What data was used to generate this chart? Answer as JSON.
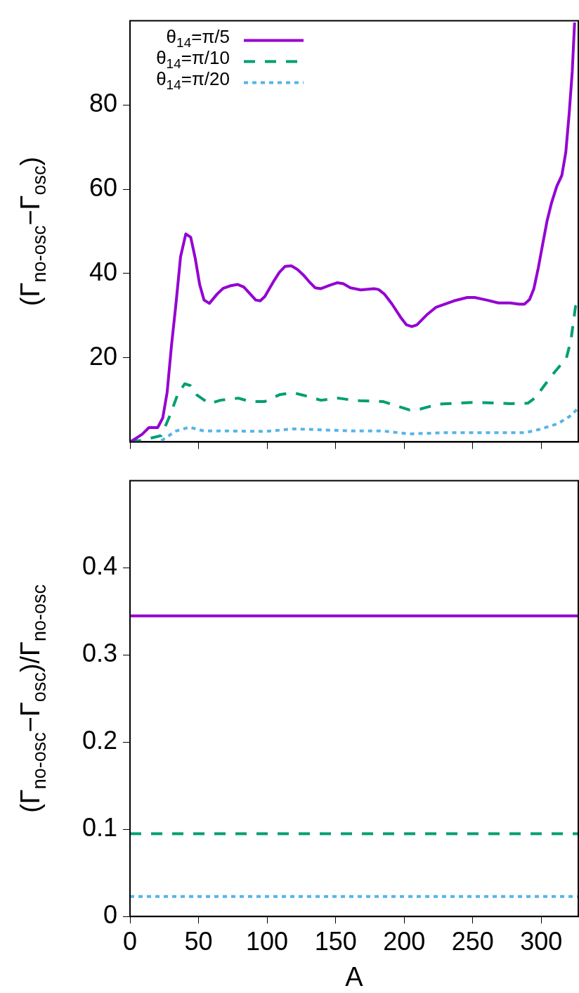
{
  "chart_data": [
    {
      "type": "line",
      "ylabel": "(Γ$_{no-osc}$−Γ$_{osc}$)",
      "xlim": [
        0,
        327
      ],
      "ylim": [
        0,
        100
      ],
      "xticks": [
        0,
        50,
        100,
        150,
        200,
        250,
        300
      ],
      "yticks": [
        20,
        40,
        60,
        80
      ],
      "tick_labels": "y",
      "legend": "top left",
      "marker": "none",
      "series": [
        {
          "name": "θ$_{14}$=π/5",
          "color": "#9400d3",
          "line_style": "solid",
          "x": [
            0,
            1.2,
            8.8,
            13.8,
            20.2,
            23.9,
            27.1,
            30.3,
            33.6,
            36.9,
            40.7,
            44.3,
            47.6,
            50.8,
            54,
            57.9,
            63.8,
            68.1,
            73.5,
            78.4,
            83,
            87.5,
            91.7,
            95,
            98.3,
            104.7,
            109,
            113.2,
            117.7,
            122,
            126.3,
            130.6,
            135,
            139.3,
            145.7,
            151,
            155.4,
            160.8,
            168.3,
            178,
            181.3,
            185.6,
            191,
            197.4,
            201.7,
            205.6,
            209.3,
            216.9,
            223.3,
            227.6,
            236.3,
            246,
            251.4,
            260.1,
            268.7,
            277.3,
            283.8,
            287.7,
            291.4,
            294.6,
            297.8,
            301.1,
            304.3,
            307.5,
            311.3,
            315,
            317.9,
            320.4,
            322.6,
            324.3
          ],
          "values": [
            0.2,
            0.2,
            1.8,
            3.4,
            3.4,
            5.7,
            11.8,
            23,
            33,
            44,
            49.4,
            48.6,
            43.6,
            37.4,
            33.7,
            32.9,
            35.2,
            36.5,
            37.1,
            37.4,
            36.8,
            35.2,
            33.7,
            33.5,
            34.5,
            38.1,
            40.3,
            41.7,
            41.8,
            41,
            39.7,
            38.1,
            36.6,
            36.4,
            37.2,
            37.8,
            37.6,
            36.6,
            36.1,
            36.4,
            36.2,
            35.1,
            32.8,
            29.6,
            27.8,
            27.4,
            27.8,
            30.3,
            32,
            32.5,
            33.5,
            34.3,
            34.3,
            33.7,
            33,
            33,
            32.7,
            32.7,
            33.8,
            36.4,
            41.3,
            47.1,
            52.6,
            56.8,
            60.7,
            63.3,
            68.8,
            78.2,
            88,
            99.6
          ]
        },
        {
          "name": "θ$_{14}$=π/10",
          "color": "#009e73",
          "line_style": "dashed",
          "x": [
            0,
            7.7,
            22.8,
            29.2,
            34.7,
            39.9,
            43.9,
            48.6,
            57.9,
            65.9,
            79,
            87.5,
            98.3,
            109,
            118.8,
            126.3,
            139.3,
            152,
            162.8,
            167.2,
            184.5,
            191,
            203.9,
            211.5,
            225.5,
            251.4,
            277.3,
            290.2,
            295.6,
            307.5,
            318.3,
            321.6,
            325,
            326.7
          ],
          "values": [
            0.2,
            0.3,
            1.5,
            6.3,
            11.2,
            13.8,
            13.4,
            11.2,
            9.1,
            9.9,
            10.4,
            9.6,
            9.6,
            11.2,
            11.7,
            11.1,
            9.9,
            10.4,
            9.9,
            9.8,
            9.6,
            8.9,
            7.6,
            7.8,
            9,
            9.4,
            9.1,
            9.2,
            10.5,
            15.7,
            19.9,
            24.1,
            32.2,
            33
          ]
        },
        {
          "name": "θ$_{14}$=π/20",
          "color": "#56b4e9",
          "line_style": "dotted",
          "x": [
            22.8,
            33.6,
            43.3,
            54,
            70.2,
            98.3,
            119.8,
            162.8,
            184.5,
            203.9,
            229.7,
            257.9,
            288.4,
            298.9,
            311.9,
            320.4,
            326.7
          ],
          "values": [
            0.3,
            2.6,
            3.5,
            2.6,
            2.6,
            2.5,
            3.1,
            2.6,
            2.6,
            1.9,
            2.2,
            2.2,
            2.2,
            3,
            4.3,
            6,
            7.9
          ]
        }
      ]
    },
    {
      "type": "line",
      "xlabel": "A",
      "ylabel": "(Γ$_{no-osc}$−Γ$_{osc}$)/Γ$_{no-osc}$",
      "xlim": [
        0,
        327
      ],
      "ylim": [
        0,
        0.5
      ],
      "xticks": [
        0,
        50,
        100,
        150,
        200,
        250,
        300
      ],
      "yticks": [
        0,
        0.1,
        0.2,
        0.3,
        0.4
      ],
      "marker": "none",
      "series": [
        {
          "color": "#9400d3",
          "line_style": "solid",
          "x": [
            0,
            327
          ],
          "values": [
            0.345,
            0.345
          ]
        },
        {
          "color": "#009e73",
          "line_style": "dashed",
          "x": [
            0,
            327
          ],
          "values": [
            0.095,
            0.095
          ]
        },
        {
          "color": "#56b4e9",
          "line_style": "dotted",
          "x": [
            0,
            327
          ],
          "values": [
            0.023,
            0.023
          ]
        }
      ]
    }
  ]
}
